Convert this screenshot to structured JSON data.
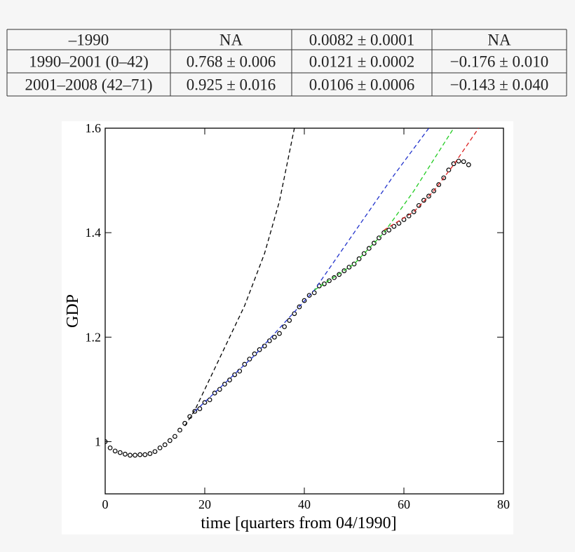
{
  "table": {
    "rows": [
      [
        "–1990",
        "NA",
        "0.0082 ± 0.0001",
        "NA"
      ],
      [
        "1990–2001 (0–42)",
        "0.768 ± 0.006",
        "0.0121 ± 0.0002",
        "−0.176 ± 0.010"
      ],
      [
        "2001–2008 (42–71)",
        "0.925 ± 0.016",
        "0.0106 ± 0.0006",
        "−0.143 ± 0.040"
      ]
    ]
  },
  "chart_data": {
    "type": "scatter",
    "x_label": "time [quarters from 04/1990]",
    "y_label": "GDP",
    "xlim": [
      0,
      80
    ],
    "ylim": [
      0.9,
      1.6
    ],
    "xticks": [
      0,
      20,
      40,
      60,
      80
    ],
    "yticks": [
      1,
      1.2,
      1.4,
      1.6
    ],
    "series": [
      {
        "kind": "markers",
        "color": "#000000",
        "x": [
          0,
          1,
          2,
          3,
          4,
          5,
          6,
          7,
          8,
          9,
          10,
          11,
          12,
          13,
          14,
          15,
          16,
          17,
          18,
          19,
          20,
          21,
          22,
          23,
          24,
          25,
          26,
          27,
          28,
          29,
          30,
          31,
          32,
          33,
          34,
          35,
          36,
          37,
          38,
          39,
          40,
          41,
          42,
          43,
          44,
          45,
          46,
          47,
          48,
          49,
          50,
          51,
          52,
          53,
          54,
          55,
          56,
          57,
          58,
          59,
          60,
          61,
          62,
          63,
          64,
          65,
          66,
          67,
          68,
          69,
          70,
          71,
          72,
          73
        ],
        "values": [
          1.0,
          0.988,
          0.982,
          0.979,
          0.976,
          0.974,
          0.974,
          0.975,
          0.975,
          0.977,
          0.981,
          0.988,
          0.994,
          1.002,
          1.01,
          1.022,
          1.035,
          1.048,
          1.058,
          1.063,
          1.075,
          1.08,
          1.093,
          1.1,
          1.11,
          1.118,
          1.128,
          1.135,
          1.148,
          1.158,
          1.168,
          1.176,
          1.183,
          1.193,
          1.2,
          1.207,
          1.22,
          1.232,
          1.245,
          1.258,
          1.27,
          1.28,
          1.285,
          1.298,
          1.302,
          1.308,
          1.314,
          1.32,
          1.327,
          1.334,
          1.34,
          1.35,
          1.36,
          1.37,
          1.38,
          1.39,
          1.4,
          1.405,
          1.412,
          1.418,
          1.425,
          1.432,
          1.44,
          1.452,
          1.462,
          1.47,
          1.48,
          1.492,
          1.505,
          1.52,
          1.532,
          1.537,
          1.536,
          1.53
        ]
      },
      {
        "kind": "dashed",
        "color": "#000000",
        "x": [
          16,
          18,
          20,
          24,
          28,
          32,
          35,
          38
        ],
        "values": [
          1.03,
          1.06,
          1.1,
          1.18,
          1.26,
          1.36,
          1.46,
          1.6
        ]
      },
      {
        "kind": "dashed",
        "color": "#2233cc",
        "x": [
          18,
          30,
          42,
          50,
          58,
          65
        ],
        "values": [
          1.058,
          1.165,
          1.29,
          1.4,
          1.51,
          1.6
        ]
      },
      {
        "kind": "dashed",
        "color": "#22cc22",
        "x": [
          42,
          50,
          56,
          62,
          70
        ],
        "values": [
          1.29,
          1.34,
          1.4,
          1.48,
          1.6
        ]
      },
      {
        "kind": "dashed",
        "color": "#dd2222",
        "x": [
          56,
          62,
          66,
          70,
          75
        ],
        "values": [
          1.405,
          1.44,
          1.48,
          1.53,
          1.6
        ]
      }
    ]
  }
}
